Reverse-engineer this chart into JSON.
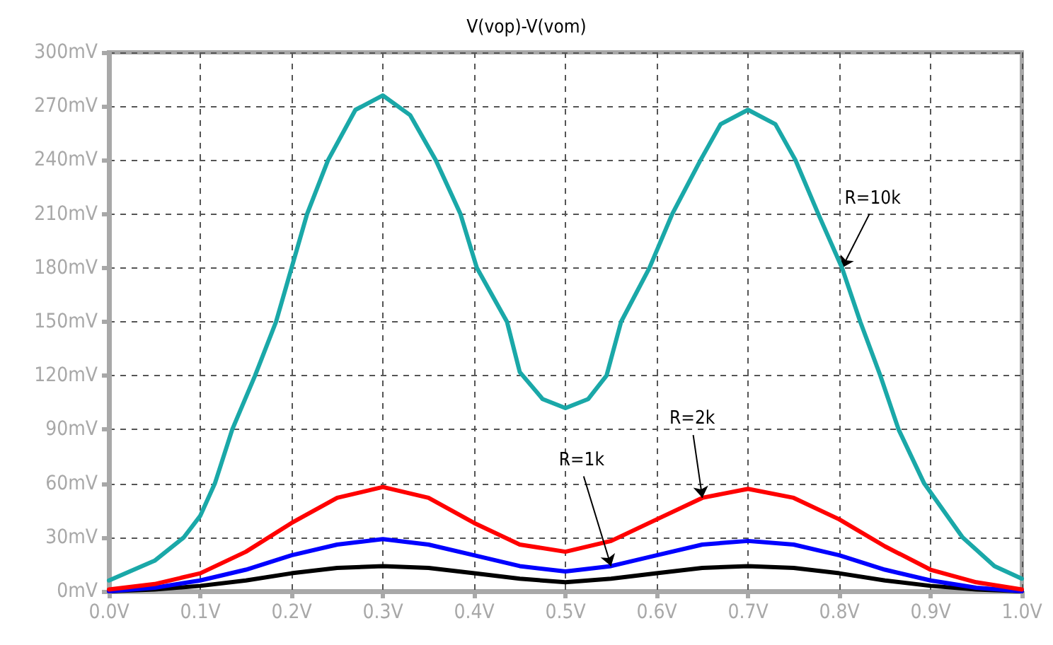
{
  "chart_data": {
    "type": "line",
    "title": "V(vop)-V(vom)",
    "grid": true,
    "marker": "none",
    "line_style": "solid",
    "xlim": [
      0,
      1
    ],
    "ylim": [
      0,
      300
    ],
    "xticks": [
      {
        "value": 0,
        "label": "0.0V"
      },
      {
        "value": 0.1,
        "label": "0.1V"
      },
      {
        "value": 0.2,
        "label": "0.2V"
      },
      {
        "value": 0.3,
        "label": "0.3V"
      },
      {
        "value": 0.4,
        "label": "0.4V"
      },
      {
        "value": 0.5,
        "label": "0.5V"
      },
      {
        "value": 0.6,
        "label": "0.6V"
      },
      {
        "value": 0.7,
        "label": "0.7V"
      },
      {
        "value": 0.8,
        "label": "0.8V"
      },
      {
        "value": 0.9,
        "label": "0.9V"
      },
      {
        "value": 1,
        "label": "1.0V"
      }
    ],
    "yticks": [
      {
        "value": 0,
        "label": "0mV"
      },
      {
        "value": 30,
        "label": "30mV"
      },
      {
        "value": 60,
        "label": "60mV"
      },
      {
        "value": 90,
        "label": "90mV"
      },
      {
        "value": 120,
        "label": "120mV"
      },
      {
        "value": 150,
        "label": "150mV"
      },
      {
        "value": 180,
        "label": "180mV"
      },
      {
        "value": 210,
        "label": "210mV"
      },
      {
        "value": 240,
        "label": "240mV"
      },
      {
        "value": 270,
        "label": "270mV"
      },
      {
        "value": 300,
        "label": "300mV"
      }
    ],
    "series": [
      {
        "color": "#000000",
        "x": [
          0,
          0.05,
          0.1,
          0.15,
          0.2,
          0.25,
          0.3,
          0.35,
          0.4,
          0.45,
          0.5,
          0.55,
          0.6,
          0.65,
          0.7,
          0.75,
          0.8,
          0.85,
          0.9,
          0.95,
          1
        ],
        "values": [
          0,
          1,
          3,
          6,
          10,
          13,
          14,
          13,
          10,
          7,
          5,
          7,
          10,
          13,
          14,
          13,
          10,
          6,
          3,
          1,
          0
        ]
      },
      {
        "name": "R=1k",
        "color": "#0000ff",
        "x": [
          0,
          0.05,
          0.1,
          0.15,
          0.2,
          0.25,
          0.3,
          0.35,
          0.4,
          0.45,
          0.5,
          0.55,
          0.6,
          0.65,
          0.7,
          0.75,
          0.8,
          0.85,
          0.9,
          0.95,
          1
        ],
        "values": [
          0,
          2,
          6,
          12,
          20,
          26,
          29,
          26,
          20,
          14,
          11,
          14,
          20,
          26,
          28,
          26,
          20,
          12,
          6,
          2,
          0
        ]
      },
      {
        "name": "R=2k",
        "color": "#ff0000",
        "x": [
          0,
          0.05,
          0.1,
          0.15,
          0.2,
          0.25,
          0.3,
          0.35,
          0.4,
          0.45,
          0.5,
          0.55,
          0.6,
          0.65,
          0.7,
          0.75,
          0.8,
          0.85,
          0.9,
          0.95,
          1
        ],
        "values": [
          1,
          4,
          10,
          22,
          38,
          52,
          58,
          52,
          38,
          26,
          22,
          28,
          40,
          52,
          57,
          52,
          40,
          25,
          12,
          5,
          1
        ]
      },
      {
        "name": "R=10k",
        "color": "#1aa8a8",
        "x": [
          0,
          0.05,
          0.082,
          0.1,
          0.116,
          0.135,
          0.16,
          0.183,
          0.2,
          0.217,
          0.24,
          0.27,
          0.3,
          0.33,
          0.358,
          0.385,
          0.403,
          0.436,
          0.45,
          0.475,
          0.5,
          0.525,
          0.545,
          0.561,
          0.592,
          0.617,
          0.648,
          0.67,
          0.7,
          0.73,
          0.752,
          0.777,
          0.803,
          0.823,
          0.845,
          0.865,
          0.893,
          0.935,
          0.97,
          1
        ],
        "values": [
          6,
          17,
          30,
          42,
          60,
          90,
          120,
          150,
          180,
          210,
          240,
          268,
          276,
          265,
          240,
          210,
          180,
          150,
          122,
          107,
          102,
          107,
          120,
          150,
          180,
          210,
          240,
          260,
          268,
          260,
          240,
          210,
          180,
          150,
          120,
          90,
          60,
          30,
          14,
          7
        ]
      }
    ]
  }
}
